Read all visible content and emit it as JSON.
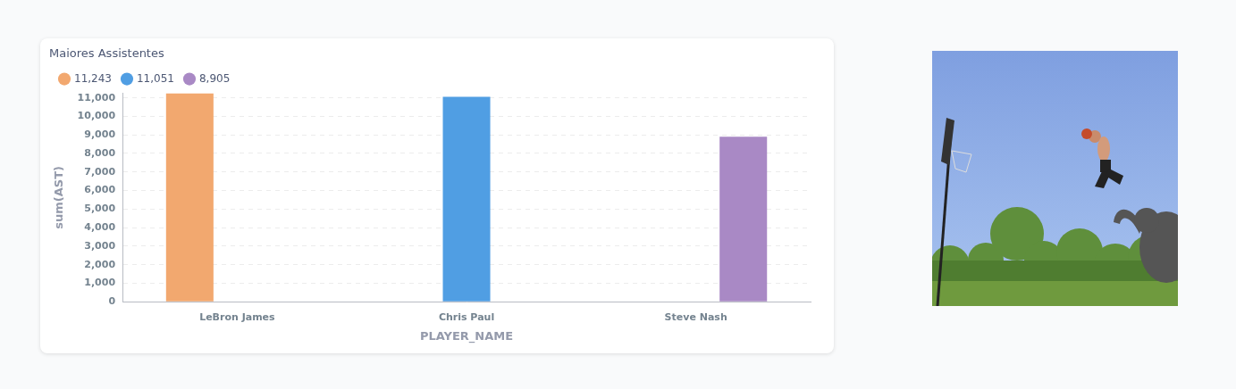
{
  "chart_data": {
    "type": "bar",
    "title": "Maiores Assistentes",
    "categories": [
      "LeBron James",
      "Chris Paul",
      "Steve Nash"
    ],
    "series": [
      {
        "name": "11,243",
        "color": "#f2a86f",
        "values": [
          11243,
          null,
          null
        ]
      },
      {
        "name": "11,051",
        "color": "#509ee3",
        "values": [
          null,
          11051,
          null
        ]
      },
      {
        "name": "8,905",
        "color": "#a989c5",
        "values": [
          null,
          null,
          8905
        ]
      }
    ],
    "x_label": "PLAYER_NAME",
    "y_label": "sum(AST)",
    "ylim": [
      0,
      11243
    ],
    "yticks": [
      0,
      {
        "value": 1000,
        "label": "1,000"
      },
      {
        "value": 2000,
        "label": "2,000"
      },
      {
        "value": 3000,
        "label": "3,000"
      },
      {
        "value": 4000,
        "label": "4,000"
      },
      {
        "value": 5000,
        "label": "5,000"
      },
      {
        "value": 6000,
        "label": "6,000"
      },
      {
        "value": 7000,
        "label": "7,000"
      },
      {
        "value": 8000,
        "label": "8,000"
      },
      {
        "value": 9000,
        "label": "9,000"
      },
      {
        "value": 10000,
        "label": "10,000"
      },
      {
        "value": 11000,
        "label": "11,000"
      }
    ],
    "grid": true,
    "legend": "top-left"
  }
}
